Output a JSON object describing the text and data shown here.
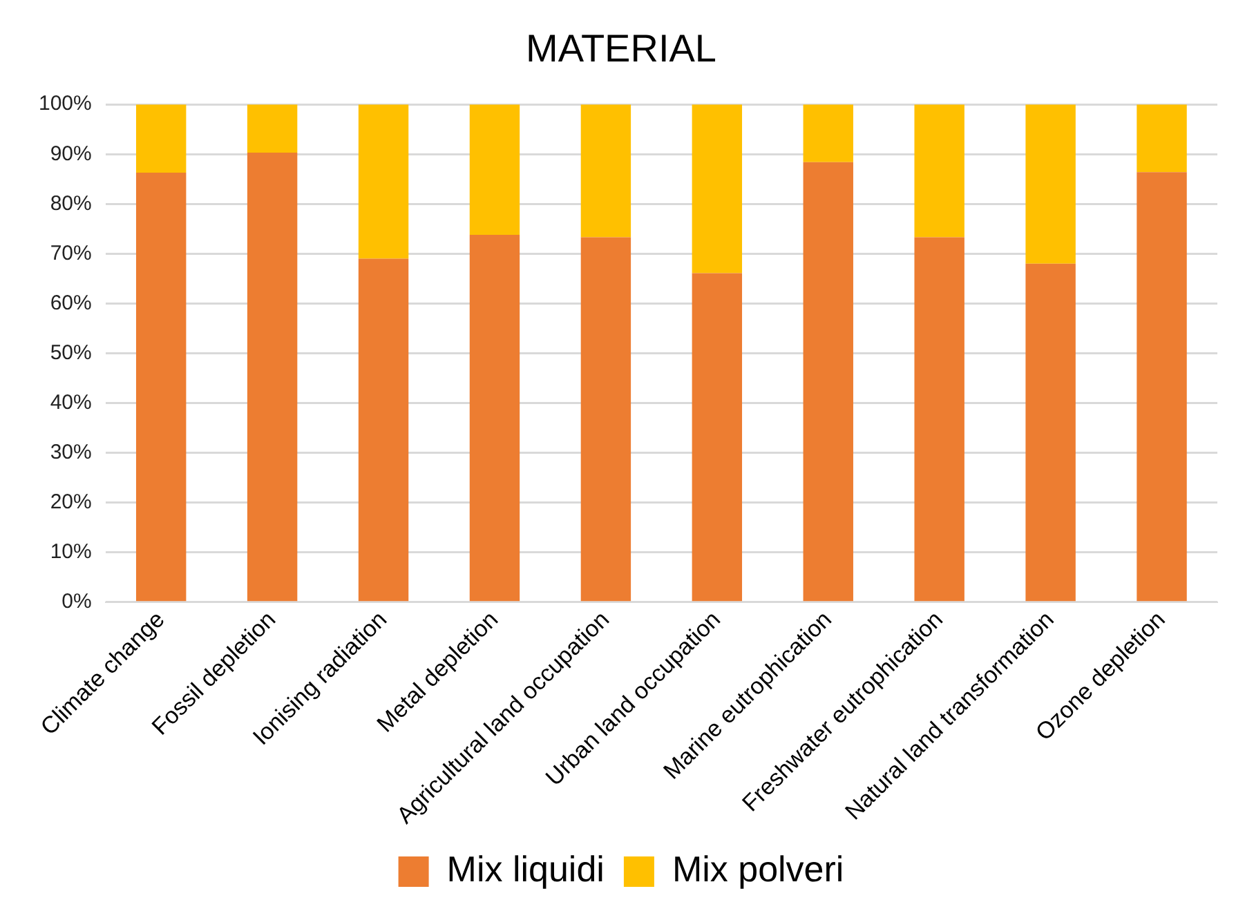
{
  "chart_data": {
    "type": "bar",
    "title": "MATERIAL",
    "stacked": true,
    "categories": [
      "Climate change",
      "Fossil depletion",
      "Ionising radiation",
      "Metal depletion",
      "Agricultural land occupation",
      "Urban land occupation",
      "Marine eutrophication",
      "Freshwater eutrophication",
      "Natural land transformation",
      "Ozone depletion"
    ],
    "series": [
      {
        "name": "Mix liquidi",
        "color": "#ed7d31",
        "values": [
          86.3,
          90.3,
          69,
          73.8,
          73.3,
          66.1,
          88.4,
          73.3,
          68,
          86.4
        ]
      },
      {
        "name": "Mix polveri",
        "color": "#ffc000",
        "values": [
          13.7,
          9.7,
          31,
          26.2,
          26.7,
          33.9,
          11.6,
          26.7,
          32,
          13.6
        ]
      }
    ],
    "ylim": [
      0,
      100
    ],
    "yticks": [
      {
        "value": 0,
        "label": "0%"
      },
      {
        "value": 10,
        "label": "10%"
      },
      {
        "value": 20,
        "label": "20%"
      },
      {
        "value": 30,
        "label": "30%"
      },
      {
        "value": 40,
        "label": "40%"
      },
      {
        "value": 50,
        "label": "50%"
      },
      {
        "value": 60,
        "label": "60%"
      },
      {
        "value": 70,
        "label": "70%"
      },
      {
        "value": 80,
        "label": "80%"
      },
      {
        "value": 90,
        "label": "90%"
      },
      {
        "value": 100,
        "label": "100%"
      }
    ],
    "grid": "y",
    "legend": "bottom"
  }
}
